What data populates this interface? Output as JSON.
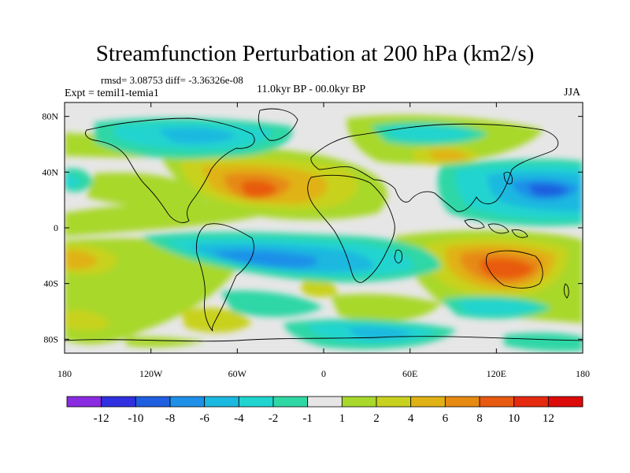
{
  "title": "Streamfunction Perturbation at 200 hPa (km2/s)",
  "stats": "rmsd= 3.08753 diff= -3.36326e-08",
  "experiment": "Expt = temil1-temia1",
  "period": "11.0kyr BP - 00.0kyr BP",
  "season": "JJA",
  "map": {
    "lon_range": [
      -180,
      180
    ],
    "lat_range": [
      -90,
      90
    ],
    "x_ticks": [
      {
        "value": -180,
        "label": "180"
      },
      {
        "value": -120,
        "label": "120W"
      },
      {
        "value": -60,
        "label": "60W"
      },
      {
        "value": 0,
        "label": "0"
      },
      {
        "value": 60,
        "label": "60E"
      },
      {
        "value": 120,
        "label": "120E"
      },
      {
        "value": 180,
        "label": "180"
      }
    ],
    "y_ticks": [
      {
        "value": 80,
        "label": "80N"
      },
      {
        "value": 40,
        "label": "40N"
      },
      {
        "value": 0,
        "label": "0"
      },
      {
        "value": -40,
        "label": "40S"
      },
      {
        "value": -80,
        "label": "80S"
      }
    ]
  },
  "colorbar": {
    "labels": [
      "-12",
      "-10",
      "-8",
      "-6",
      "-4",
      "-2",
      "-1",
      "1",
      "2",
      "4",
      "6",
      "8",
      "10",
      "12"
    ],
    "colors": [
      "#8a2be2",
      "#3030e0",
      "#1f5fdf",
      "#1e90e8",
      "#1bb8e0",
      "#20d4cf",
      "#2fd7a5",
      "#e6e6e6",
      "#a8d82b",
      "#c8d21e",
      "#e0b215",
      "#e68a12",
      "#e85a10",
      "#e52a10",
      "#dd0a0a"
    ]
  }
}
